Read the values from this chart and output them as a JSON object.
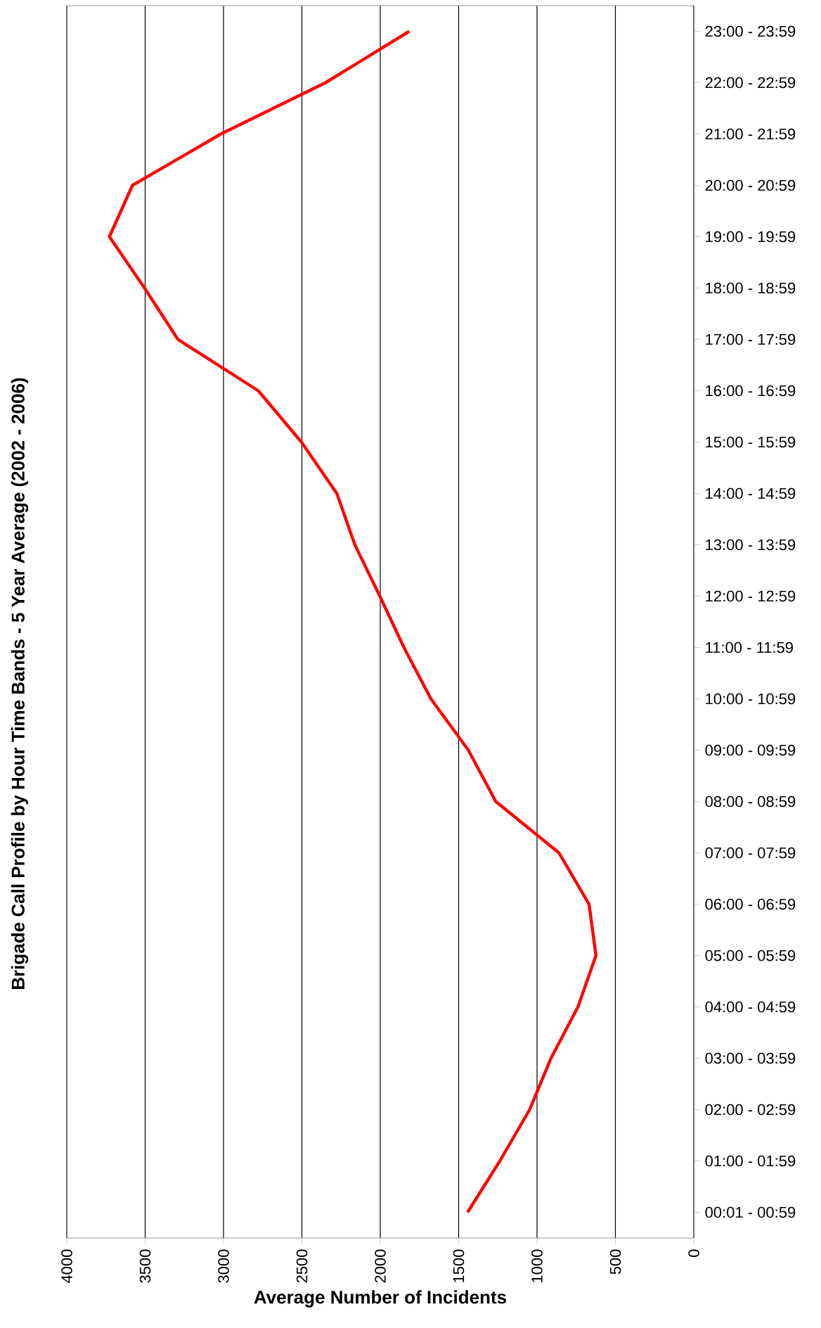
{
  "chart_data": {
    "type": "line",
    "orientation": "horizontal",
    "title": "Brigade Call Profile by Hour Time Bands - 5 Year Average (2002 - 2006)",
    "xlabel": "Average Number of Incidents",
    "categories": [
      "23:00 - 23:59",
      "22:00 - 22:59",
      "21:00 - 21:59",
      "20:00 - 20:59",
      "19:00 - 19:59",
      "18:00 - 18:59",
      "17:00 - 17:59",
      "16:00 - 16:59",
      "15:00 - 15:59",
      "14:00 - 14:59",
      "13:00 - 13:59",
      "12:00 - 12:59",
      "11:00 - 11:59",
      "10:00 - 10:59",
      "09:00 - 09:59",
      "08:00 - 08:59",
      "07:00 - 07:59",
      "06:00 - 06:59",
      "05:00 - 05:59",
      "04:00 - 04:59",
      "03:00 - 03:59",
      "02:00 - 02:59",
      "01:00 - 01:59",
      "00:01 - 00:59"
    ],
    "series": [
      {
        "color": "#ff0000",
        "values": [
          1815,
          2349,
          3017,
          3581,
          3728,
          3504,
          3291,
          2778,
          2503,
          2277,
          2162,
          2003,
          1849,
          1677,
          1438,
          1263,
          860,
          668,
          624,
          739,
          911,
          1047,
          1237,
          1443
        ]
      }
    ],
    "xlim": [
      4000,
      0
    ],
    "xticks": [
      4000,
      3500,
      3000,
      2500,
      2000,
      1500,
      1000,
      500,
      0
    ],
    "grid": "x",
    "marker": "none",
    "line_style": "solid"
  }
}
